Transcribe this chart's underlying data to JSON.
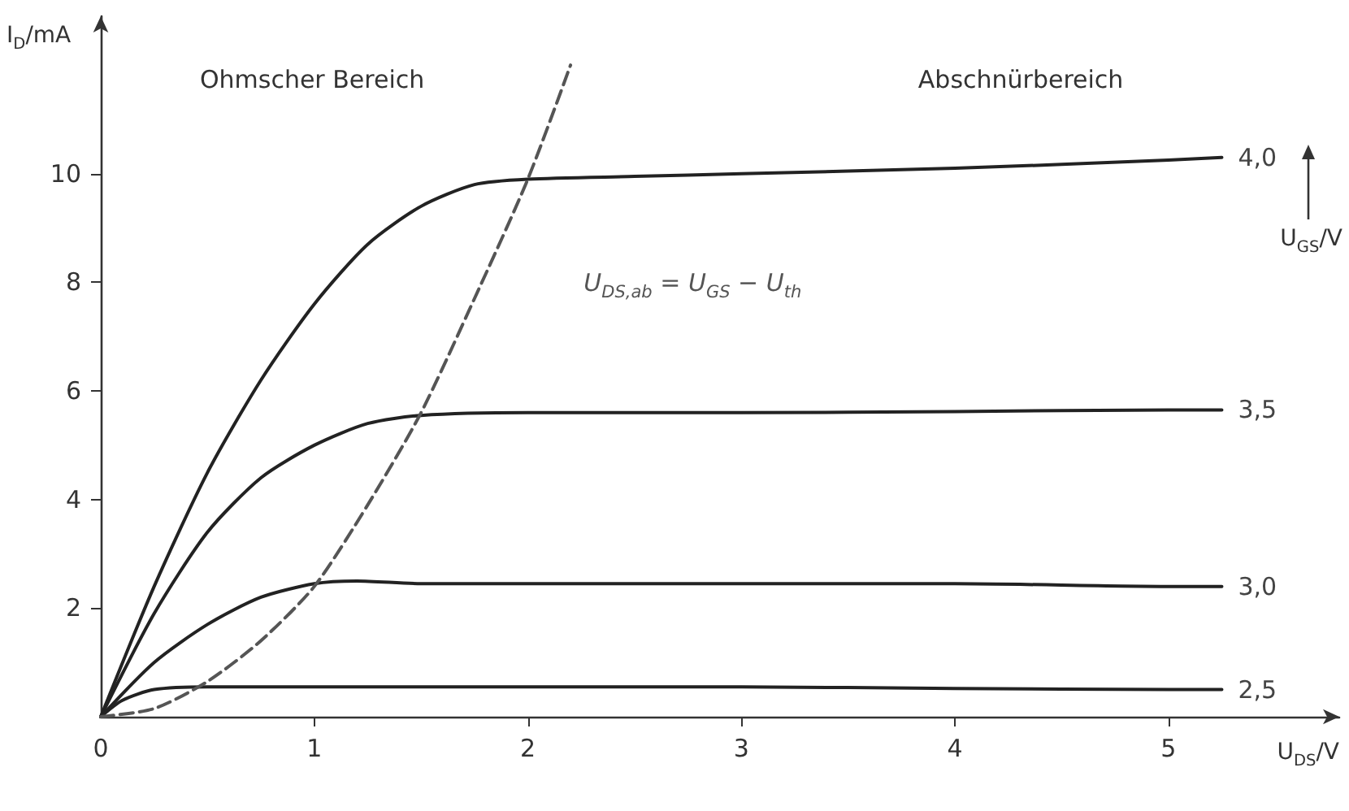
{
  "chart_data": {
    "type": "line",
    "xlabel": "U$_{DS}$/V",
    "ylabel": "I$_{D}$/mA",
    "legend_title": "U$_{GS}$/V",
    "xlim": [
      0,
      5.8
    ],
    "ylim": [
      0,
      12.9
    ],
    "xticks": [
      0,
      1,
      2,
      3,
      4,
      5
    ],
    "yticks": [
      2,
      4,
      6,
      8,
      10
    ],
    "grid": false,
    "legend": false,
    "marker": "none",
    "line_style": "solid",
    "annotations": [
      "Ohmscher Bereich",
      "Abschnürbereich",
      "U$_{DS,ab}$ = U$_{GS}$ − U$_{th}$"
    ],
    "series": [
      {
        "name": "4,0",
        "color": "#222222",
        "x": [
          0,
          0.25,
          0.5,
          0.75,
          1,
          1.25,
          1.5,
          1.75,
          2,
          2.5,
          3,
          4,
          5,
          5.25
        ],
        "values": [
          0,
          2.4,
          4.5,
          6.2,
          7.6,
          8.7,
          9.4,
          9.8,
          9.9,
          9.95,
          10.0,
          10.1,
          10.25,
          10.3
        ]
      },
      {
        "name": "3,5",
        "color": "#222222",
        "x": [
          0,
          0.25,
          0.5,
          0.75,
          1,
          1.25,
          1.5,
          2,
          3,
          4,
          5,
          5.25
        ],
        "values": [
          0,
          1.9,
          3.4,
          4.4,
          5.0,
          5.4,
          5.55,
          5.6,
          5.6,
          5.62,
          5.65,
          5.65
        ]
      },
      {
        "name": "3,0",
        "color": "#222222",
        "x": [
          0,
          0.25,
          0.5,
          0.75,
          1,
          1.2,
          1.5,
          2,
          3,
          4,
          5,
          5.25
        ],
        "values": [
          0,
          1.0,
          1.7,
          2.2,
          2.45,
          2.5,
          2.45,
          2.45,
          2.45,
          2.45,
          2.4,
          2.4
        ]
      },
      {
        "name": "2,5",
        "color": "#222222",
        "x": [
          0,
          0.1,
          0.25,
          0.5,
          1,
          2,
          3,
          4,
          5,
          5.25
        ],
        "values": [
          0,
          0.3,
          0.5,
          0.55,
          0.55,
          0.55,
          0.55,
          0.52,
          0.5,
          0.5
        ]
      },
      {
        "color": "#555555",
        "line_style": "dashed",
        "x": [
          0,
          0.25,
          0.5,
          0.75,
          1,
          1.25,
          1.5,
          1.75,
          2,
          2.2
        ],
        "values": [
          0,
          0.15,
          0.65,
          1.4,
          2.4,
          3.9,
          5.6,
          7.7,
          9.9,
          12.0
        ]
      }
    ]
  }
}
